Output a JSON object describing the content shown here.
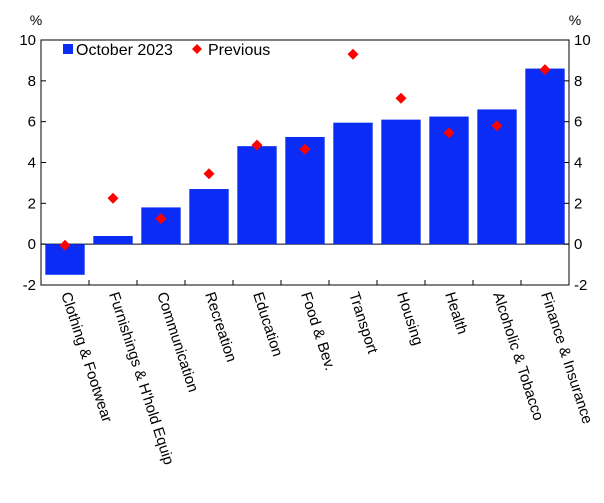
{
  "chart_data": {
    "type": "bar",
    "title": "",
    "xlabel": "",
    "ylabel": "",
    "unit_left": "%",
    "unit_right": "%",
    "ylim": [
      -2,
      10
    ],
    "yticks": [
      -2,
      0,
      2,
      4,
      6,
      8,
      10
    ],
    "legend_position": "top-left",
    "categories": [
      "Clothing & Footwear",
      "Furnishings & H'hold Equip",
      "Communication",
      "Recreation",
      "Education",
      "Food & Bev.",
      "Transport",
      "Housing",
      "Health",
      "Alcoholic & Tobacco",
      "Finance & Insurance"
    ],
    "series": [
      {
        "name": "October 2023",
        "kind": "bar",
        "color": "#0a2cf5",
        "values": [
          -1.5,
          0.4,
          1.8,
          2.7,
          4.8,
          5.25,
          5.95,
          6.1,
          6.25,
          6.6,
          8.6
        ]
      },
      {
        "name": "Previous",
        "kind": "marker",
        "marker": "diamond",
        "color": "#ff0000",
        "values": [
          -0.05,
          2.25,
          1.25,
          3.45,
          4.85,
          4.65,
          9.3,
          7.15,
          5.45,
          5.8,
          8.55
        ]
      }
    ]
  }
}
